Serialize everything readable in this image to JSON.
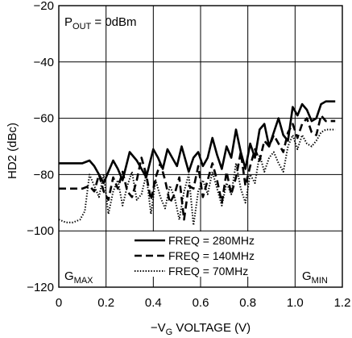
{
  "chart_data": {
    "type": "line",
    "title": "",
    "xlabel": {
      "main": "−V",
      "sub": "G",
      "rest": " VOLTAGE (V)"
    },
    "ylabel": "HD2 (dBc)",
    "xlim": [
      0,
      1.2
    ],
    "ylim": [
      -120,
      -20
    ],
    "xticks": [
      0,
      0.2,
      0.4,
      0.6,
      0.8,
      1.0,
      1.2
    ],
    "xtick_labels": [
      "0",
      "0.2",
      "0.4",
      "0.6",
      "0.8",
      "1.0",
      "1.2"
    ],
    "yticks": [
      -20,
      -40,
      -60,
      -80,
      -100,
      -120
    ],
    "ytick_labels": [
      "−20",
      "−40",
      "−60",
      "−80",
      "−100",
      "−120"
    ],
    "grid": true,
    "legend_position": "bottom-center",
    "annotations": {
      "pout": {
        "main": "P",
        "sub": "OUT",
        "rest": " = 0dBm"
      },
      "gmax": {
        "main": "G",
        "sub": "MAX"
      },
      "gmin": {
        "main": "G",
        "sub": "MIN"
      }
    },
    "series": [
      {
        "name": "FREQ = 280MHz",
        "style": "solid",
        "x": [
          0,
          0.05,
          0.1,
          0.13,
          0.15,
          0.17,
          0.19,
          0.21,
          0.23,
          0.25,
          0.27,
          0.3,
          0.33,
          0.35,
          0.37,
          0.4,
          0.42,
          0.44,
          0.46,
          0.48,
          0.5,
          0.52,
          0.55,
          0.57,
          0.59,
          0.61,
          0.63,
          0.65,
          0.67,
          0.69,
          0.71,
          0.73,
          0.75,
          0.77,
          0.79,
          0.81,
          0.83,
          0.85,
          0.87,
          0.89,
          0.91,
          0.93,
          0.95,
          0.97,
          0.99,
          1.01,
          1.03,
          1.05,
          1.07,
          1.09,
          1.11,
          1.13,
          1.15,
          1.17
        ],
        "y": [
          -76,
          -76,
          -76,
          -75,
          -77,
          -80,
          -83,
          -79,
          -75,
          -78,
          -82,
          -72,
          -75,
          -78,
          -81,
          -71,
          -74,
          -78,
          -71,
          -74,
          -77,
          -70,
          -79,
          -74,
          -72,
          -77,
          -74,
          -67,
          -73,
          -78,
          -70,
          -74,
          -64,
          -72,
          -78,
          -69,
          -74,
          -64,
          -62,
          -70,
          -65,
          -60,
          -66,
          -68,
          -56,
          -59,
          -55,
          -57,
          -61,
          -60,
          -55,
          -54,
          -54,
          -54
        ]
      },
      {
        "name": "FREQ = 140MHz",
        "style": "dashed",
        "x": [
          0,
          0.05,
          0.1,
          0.13,
          0.15,
          0.17,
          0.19,
          0.21,
          0.23,
          0.25,
          0.27,
          0.29,
          0.31,
          0.33,
          0.35,
          0.37,
          0.39,
          0.41,
          0.43,
          0.45,
          0.47,
          0.49,
          0.51,
          0.53,
          0.55,
          0.57,
          0.59,
          0.61,
          0.63,
          0.65,
          0.67,
          0.69,
          0.71,
          0.73,
          0.75,
          0.77,
          0.79,
          0.81,
          0.83,
          0.85,
          0.87,
          0.89,
          0.91,
          0.93,
          0.95,
          0.97,
          0.99,
          1.01,
          1.03,
          1.05,
          1.07,
          1.09,
          1.11,
          1.13,
          1.15,
          1.17
        ],
        "y": [
          -85,
          -85,
          -85,
          -84,
          -86,
          -80,
          -86,
          -89,
          -81,
          -85,
          -79,
          -86,
          -88,
          -82,
          -74,
          -80,
          -89,
          -81,
          -76,
          -82,
          -90,
          -87,
          -81,
          -96,
          -84,
          -85,
          -77,
          -88,
          -82,
          -76,
          -82,
          -90,
          -79,
          -87,
          -81,
          -72,
          -84,
          -77,
          -71,
          -75,
          -68,
          -70,
          -66,
          -69,
          -72,
          -65,
          -62,
          -67,
          -62,
          -60,
          -65,
          -66,
          -59,
          -61,
          -61,
          -61
        ]
      },
      {
        "name": "FREQ = 70MHz",
        "style": "dotted",
        "x": [
          0,
          0.03,
          0.06,
          0.09,
          0.11,
          0.13,
          0.15,
          0.17,
          0.19,
          0.21,
          0.23,
          0.25,
          0.27,
          0.29,
          0.31,
          0.33,
          0.35,
          0.37,
          0.39,
          0.41,
          0.43,
          0.45,
          0.47,
          0.49,
          0.51,
          0.53,
          0.55,
          0.57,
          0.59,
          0.61,
          0.63,
          0.65,
          0.67,
          0.69,
          0.71,
          0.73,
          0.75,
          0.77,
          0.79,
          0.81,
          0.83,
          0.85,
          0.87,
          0.89,
          0.91,
          0.93,
          0.95,
          0.97,
          0.99,
          1.01,
          1.03,
          1.05,
          1.07,
          1.09,
          1.11,
          1.13,
          1.15,
          1.17
        ],
        "y": [
          -96,
          -97,
          -97,
          -96,
          -93,
          -80,
          -84,
          -88,
          -80,
          -94,
          -86,
          -82,
          -91,
          -84,
          -79,
          -89,
          -87,
          -80,
          -94,
          -82,
          -88,
          -92,
          -84,
          -88,
          -96,
          -86,
          -80,
          -98,
          -86,
          -82,
          -87,
          -79,
          -85,
          -91,
          -83,
          -87,
          -76,
          -85,
          -90,
          -80,
          -83,
          -73,
          -79,
          -74,
          -72,
          -76,
          -79,
          -70,
          -66,
          -71,
          -66,
          -69,
          -70,
          -68,
          -65,
          -64,
          -64,
          -64
        ]
      }
    ]
  }
}
